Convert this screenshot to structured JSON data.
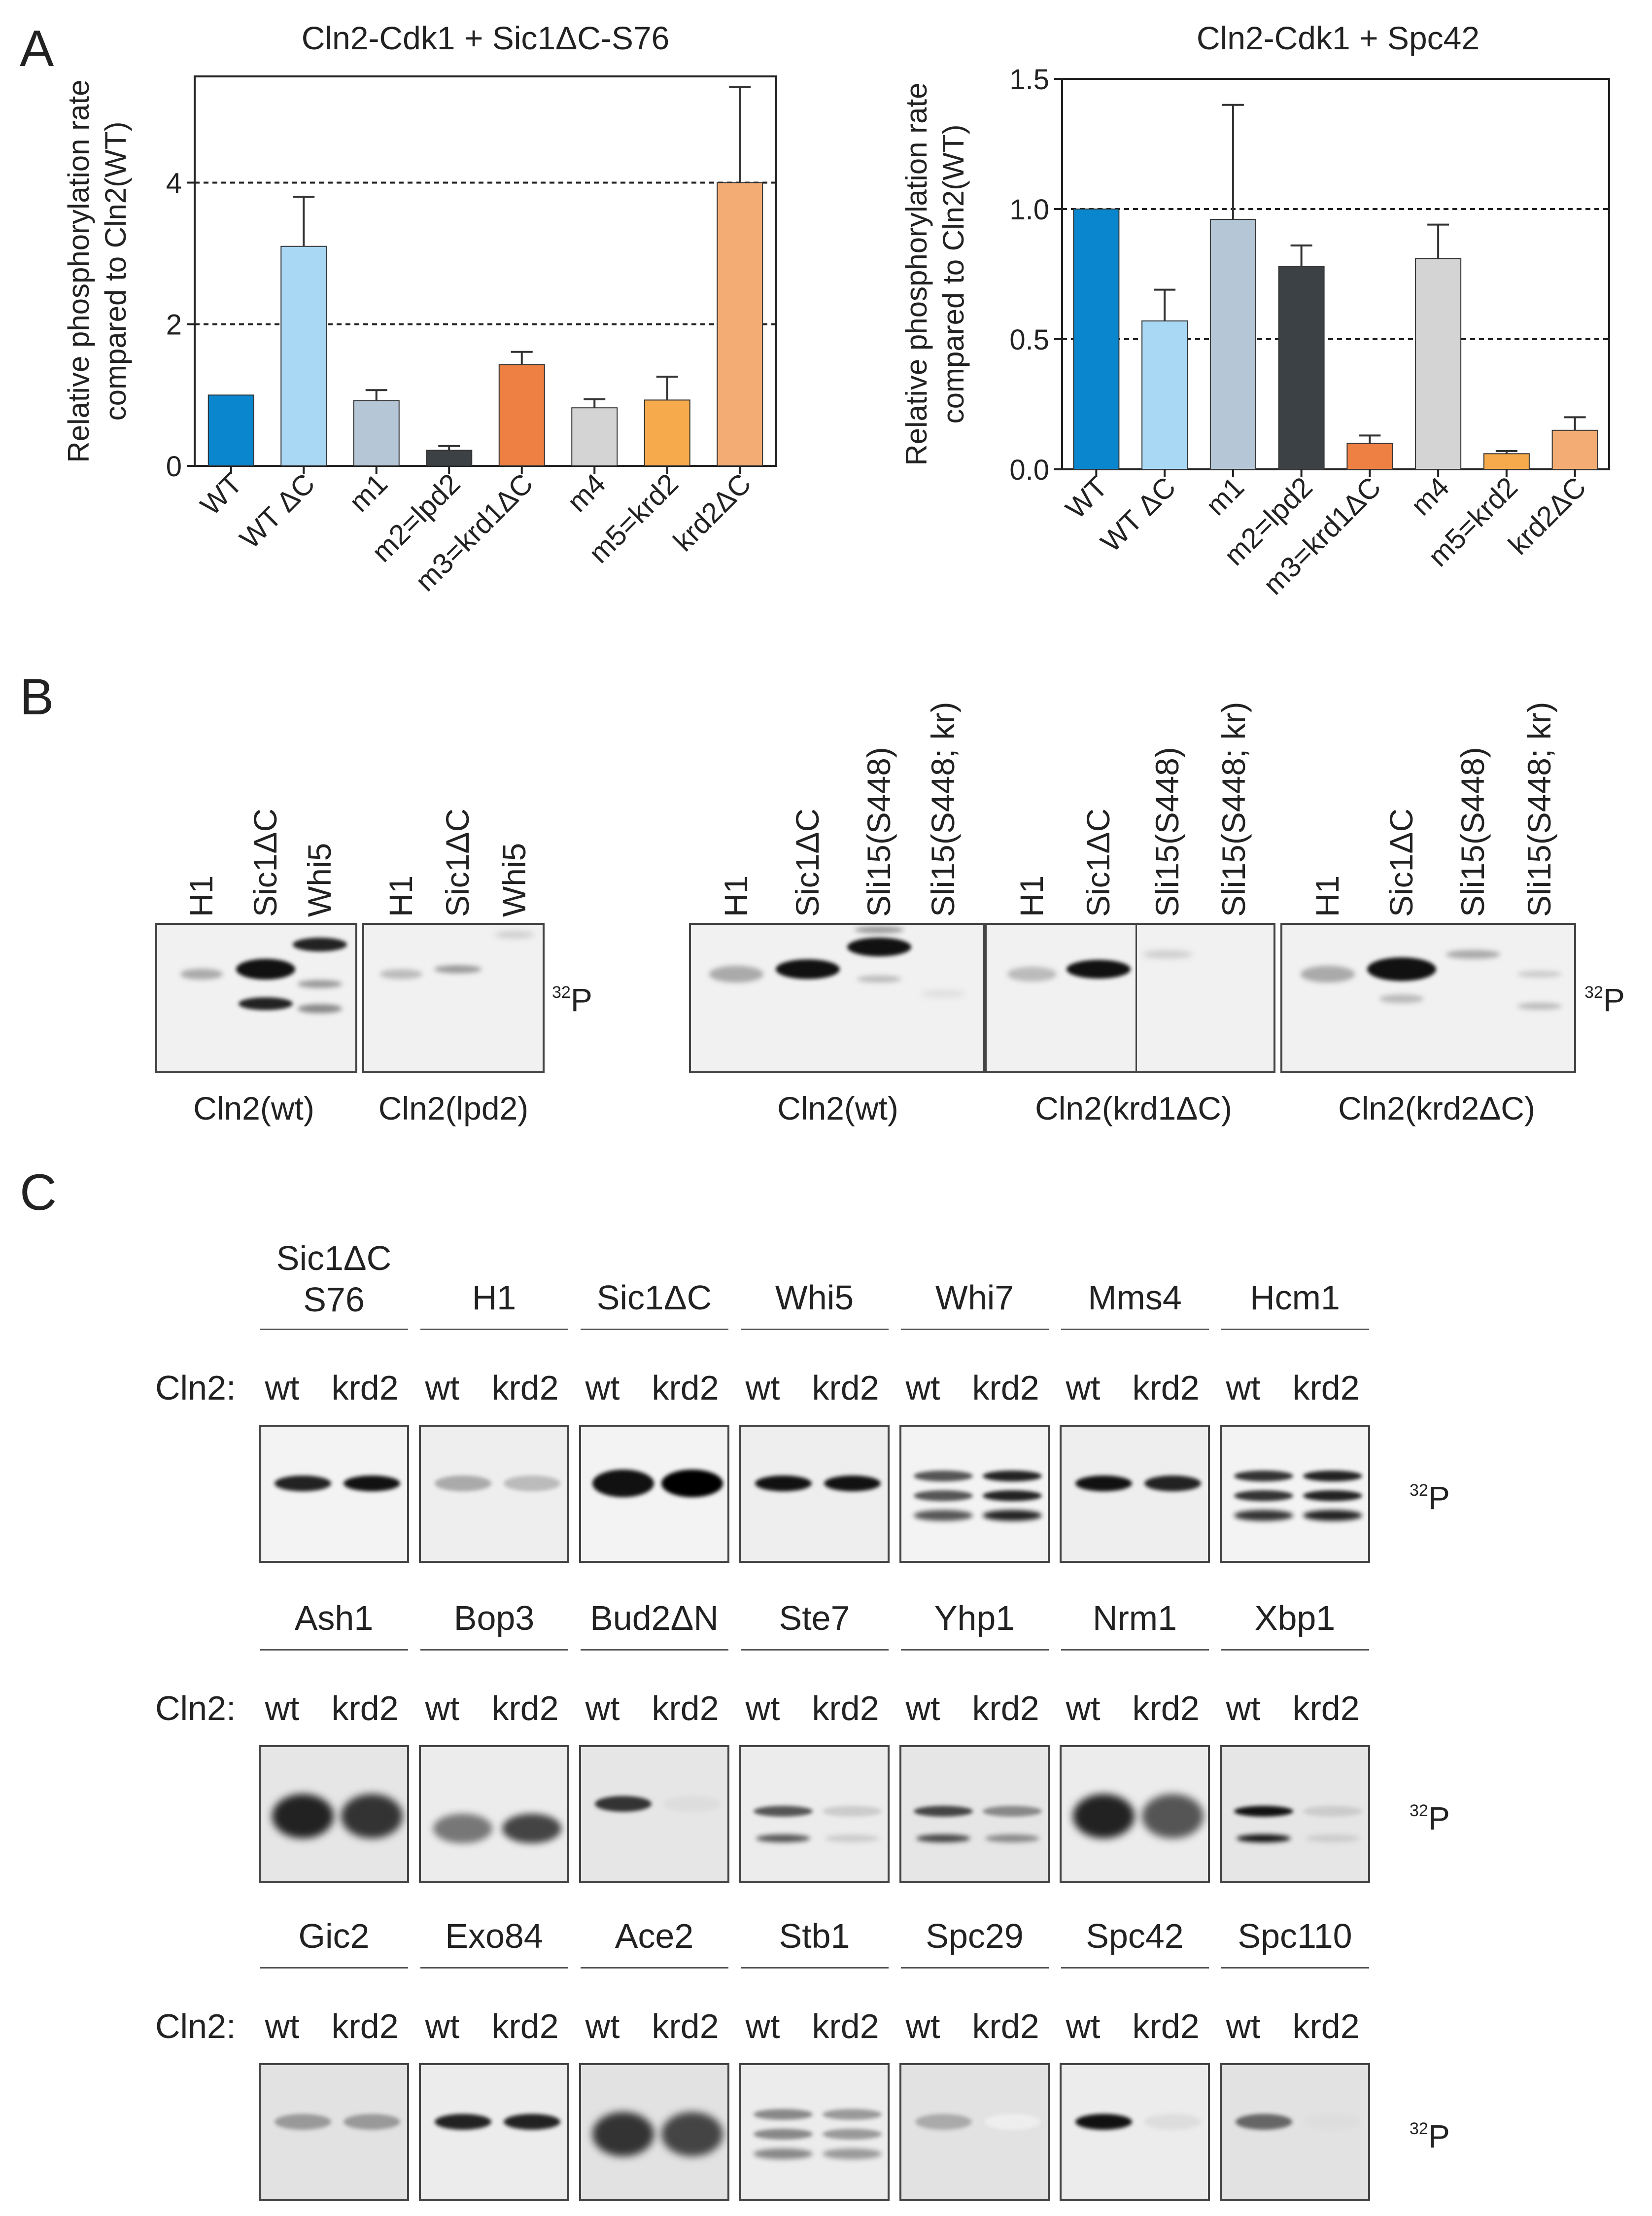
{
  "panel_letters": {
    "a": "A",
    "b": "B",
    "c": "C"
  },
  "chart_data": [
    {
      "type": "bar",
      "title": "Cln2-Cdk1 + Sic1ΔC-S76",
      "ylabel_lines": [
        "Relative phosphorylation rate",
        "compared to Cln2(WT)"
      ],
      "categories": [
        "WT",
        "WT ΔC",
        "m1",
        "m2=lpd2",
        "m3=krd1ΔC",
        "m4",
        "m5=krd2",
        "krd2ΔC"
      ],
      "values": [
        1.0,
        3.1,
        0.92,
        0.22,
        1.43,
        0.82,
        0.93,
        4.0
      ],
      "errors": [
        0,
        0.7,
        0.15,
        0.06,
        0.18,
        0.12,
        0.33,
        1.35
      ],
      "colors": [
        "#0a86cf",
        "#a9d8f5",
        "#b5c7d6",
        "#3c4145",
        "#ef8044",
        "#d4d4d4",
        "#f6aa4c",
        "#f3ad74"
      ],
      "ylim": [
        0,
        5.5
      ],
      "yticks": [
        "0",
        "2",
        "4"
      ],
      "ytick_values": [
        0,
        2,
        4
      ],
      "reference_lines": [
        2,
        4
      ]
    },
    {
      "type": "bar",
      "title": "Cln2-Cdk1 + Spc42",
      "ylabel_lines": [
        "Relative phosphorylation rate",
        "compared to Cln2(WT)"
      ],
      "categories": [
        "WT",
        "WT ΔC",
        "m1",
        "m2=lpd2",
        "m3=krd1ΔC",
        "m4",
        "m5=krd2",
        "krd2ΔC"
      ],
      "values": [
        1.0,
        0.57,
        0.96,
        0.78,
        0.1,
        0.81,
        0.06,
        0.15
      ],
      "errors": [
        0,
        0.12,
        0.44,
        0.08,
        0.03,
        0.13,
        0.01,
        0.05
      ],
      "colors": [
        "#0a86cf",
        "#a9d8f5",
        "#b5c7d6",
        "#3c4145",
        "#ef8044",
        "#d4d4d4",
        "#f6aa4c",
        "#f3ad74"
      ],
      "ylim": [
        0,
        1.5
      ],
      "yticks": [
        "0.0",
        "0.5",
        "1.0",
        "1.5"
      ],
      "ytick_values": [
        0,
        0.5,
        1.0,
        1.5
      ],
      "reference_lines": [
        0.5,
        1.0
      ]
    }
  ],
  "panel_b": {
    "p32_label": "P",
    "p32_mass": "32",
    "groups": [
      {
        "caption": "Cln2(wt)",
        "lanes": [
          "H1",
          "Sic1ΔC",
          "Whi5"
        ]
      },
      {
        "caption": "Cln2(lpd2)",
        "lanes": [
          "H1",
          "Sic1ΔC",
          "Whi5"
        ]
      },
      {
        "caption": "Cln2(wt)",
        "lanes": [
          "H1",
          "Sic1ΔC",
          "Sli15(S448)",
          "Sli15(S448; kr)"
        ]
      },
      {
        "caption": "Cln2(krd1ΔC)",
        "lanes": [
          "H1",
          "Sic1ΔC",
          "Sli15(S448)",
          "Sli15(S448; kr)"
        ]
      },
      {
        "caption": "Cln2(krd2ΔC)",
        "lanes": [
          "H1",
          "Sic1ΔC",
          "Sli15(S448)",
          "Sli15(S448; kr)"
        ]
      }
    ]
  },
  "panel_c": {
    "cln2_label": "Cln2:",
    "wt_label": "wt",
    "mut_label": "krd2",
    "p32_label": "P",
    "p32_mass": "32",
    "rows": [
      {
        "substrates": [
          "Sic1ΔC\nS76",
          "H1",
          "Sic1ΔC",
          "Whi5",
          "Whi7",
          "Mms4",
          "Hcm1"
        ]
      },
      {
        "substrates": [
          "Ash1",
          "Bop3",
          "Bud2ΔN",
          "Ste7",
          "Yhp1",
          "Nrm1",
          "Xbp1"
        ]
      },
      {
        "substrates": [
          "Gic2",
          "Exo84",
          "Ace2",
          "Stb1",
          "Spc29",
          "Spc42",
          "Spc110"
        ]
      }
    ]
  }
}
